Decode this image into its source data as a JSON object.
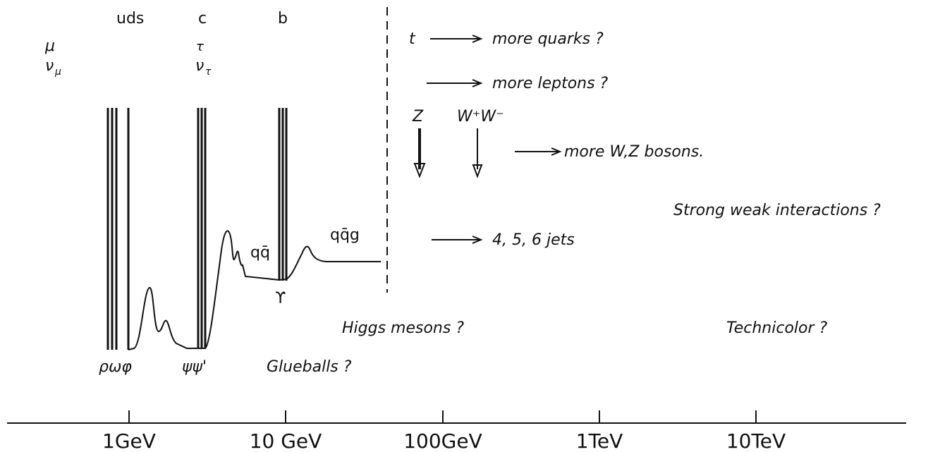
{
  "columns": {
    "uds": "uds",
    "c": "c",
    "b": "b"
  },
  "leptons": {
    "mu": "μ",
    "nu_mu": "ν",
    "nu_mu_sub": "μ",
    "tau": "τ",
    "nu_tau": "ν",
    "nu_tau_sub": "τ"
  },
  "predictions": {
    "t": "t",
    "more_quarks": "more quarks ?",
    "more_leptons": "more leptons ?",
    "z": "Z",
    "w": "W⁺W⁻",
    "more_bosons": "more W,Z bosons.",
    "strong_weak": "Strong weak interactions ?",
    "jets": "4, 5, 6   jets"
  },
  "features": {
    "qq": "qq̄",
    "qqg": "qq̄g",
    "upsilon": "ϒ",
    "higgs": "Higgs mesons ?",
    "technicolor": "Technicolor ?",
    "rho_omega_phi": "ρωφ",
    "psi": "ψψ'",
    "glueballs": "Glueballs ?"
  },
  "axis": [
    "1GeV",
    "10 GeV",
    "100GeV",
    "1TeV",
    "10TeV"
  ]
}
